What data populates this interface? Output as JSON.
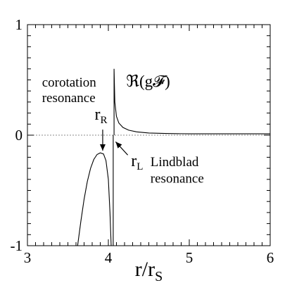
{
  "chart_data": {
    "type": "line",
    "xlabel_main": "r/r",
    "xlabel_sub": "S",
    "xlim": [
      3,
      6
    ],
    "ylim": [
      -1,
      1
    ],
    "x_ticks": [
      3,
      4,
      5,
      6
    ],
    "y_ticks": [
      -1,
      0,
      1
    ],
    "x_tick_labels": [
      "3",
      "4",
      "5",
      "6"
    ],
    "y_tick_labels": [
      "-1",
      "0",
      "1"
    ],
    "zero_line": true,
    "grid": false,
    "series": [
      {
        "name": "ℜ(g𝓕)",
        "segments": [
          {
            "x": [
              3.62,
              3.66,
              3.7,
              3.74,
              3.78,
              3.82,
              3.86,
              3.9,
              3.94,
              3.97,
              4.0,
              4.02,
              4.035
            ],
            "y": [
              -1.0,
              -0.78,
              -0.58,
              -0.42,
              -0.3,
              -0.22,
              -0.175,
              -0.16,
              -0.17,
              -0.23,
              -0.4,
              -0.7,
              -1.0
            ]
          },
          {
            "x": [
              4.06,
              4.06
            ],
            "y": [
              -1.0,
              0.0
            ]
          },
          {
            "x": [
              4.07,
              4.07,
              4.08,
              4.1,
              4.13,
              4.18,
              4.25,
              4.35,
              4.5,
              4.7,
              5.0,
              5.5,
              6.0
            ],
            "y": [
              0.0,
              0.6,
              0.3,
              0.17,
              0.11,
              0.07,
              0.045,
              0.03,
              0.02,
              0.015,
              0.012,
              0.012,
              0.012
            ]
          }
        ]
      }
    ],
    "annotations": [
      {
        "id": "corotation1",
        "text": "corotation",
        "x": 3.18,
        "y": 0.44
      },
      {
        "id": "corotation2",
        "text": "resonance",
        "x": 3.18,
        "y": 0.3
      },
      {
        "id": "rR",
        "main": "r",
        "sub": "R",
        "x": 3.83,
        "y": 0.14
      },
      {
        "id": "rL",
        "main": "r",
        "sub": "L",
        "x": 4.28,
        "y": -0.28
      },
      {
        "id": "lindblad1",
        "text": "Lindblad",
        "x": 4.52,
        "y": -0.28
      },
      {
        "id": "lindblad2",
        "text": "resonance",
        "x": 4.52,
        "y": -0.43
      },
      {
        "id": "curve",
        "text": "ℜ(g𝓕)",
        "x": 4.22,
        "y": 0.44
      }
    ],
    "arrows": [
      {
        "id": "arrow-rR",
        "from": [
          3.93,
          0.05
        ],
        "to": [
          3.93,
          -0.14
        ]
      },
      {
        "id": "arrow-rL",
        "from": [
          4.24,
          -0.18
        ],
        "to": [
          4.09,
          -0.06
        ]
      }
    ]
  }
}
